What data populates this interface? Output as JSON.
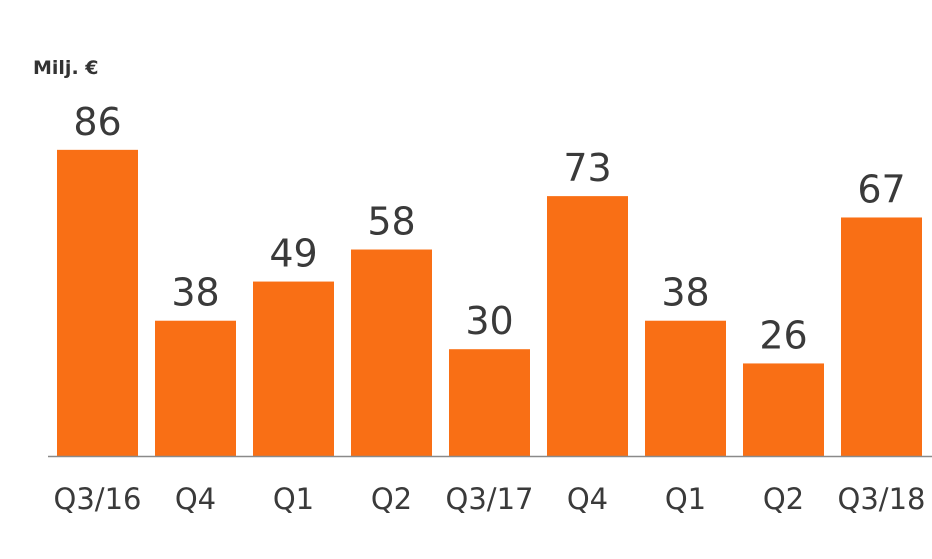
{
  "chart_data": {
    "type": "bar",
    "unit_label": "Milj. €",
    "categories": [
      "Q3/16",
      "Q4",
      "Q1",
      "Q2",
      "Q3/17",
      "Q4",
      "Q1",
      "Q2",
      "Q3/18"
    ],
    "values": [
      86,
      38,
      49,
      58,
      30,
      73,
      38,
      26,
      67
    ],
    "value_labels": [
      "86",
      "38",
      "49",
      "58",
      "30",
      "73",
      "38",
      "26",
      "67"
    ],
    "ylim": [
      0,
      100
    ],
    "grid": false,
    "legend": "none",
    "colors": {
      "bar": "#F96F15",
      "axis": "#8a8a8a",
      "text": "#3a3a3a"
    }
  }
}
